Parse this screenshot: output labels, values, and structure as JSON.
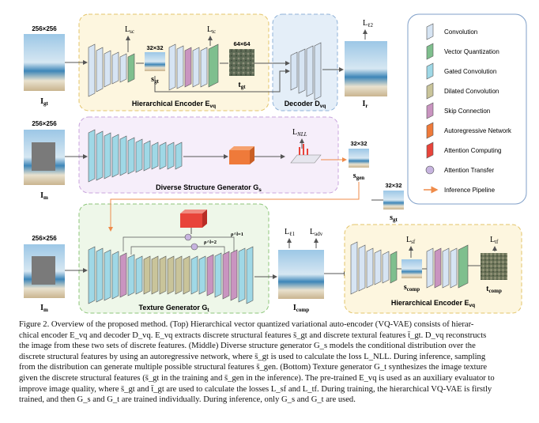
{
  "sizes": {
    "s256": "256×256",
    "s32": "32×32",
    "s64": "64×64"
  },
  "top": {
    "encoder_title": "Hierarchical Encoder E",
    "encoder_sub": "vq",
    "decoder_title": "Decoder D",
    "decoder_sub": "vq",
    "img_in": "I",
    "img_in_sub": "gt",
    "img_out": "I",
    "img_out_sub": "r",
    "s_label": "s",
    "s_sub": "gt",
    "t_label": "t",
    "t_sub": "gt",
    "loss_sc": "L",
    "loss_sc_sub": "sc",
    "loss_tc": "L",
    "loss_tc_sub": "tc",
    "loss_l2": "L",
    "loss_l2_sub": "ℓ2"
  },
  "middle": {
    "title": "Diverse Structure Generator G",
    "title_sub": "s",
    "img_in": "I",
    "img_in_sub": "m",
    "loss_nll": "L",
    "loss_nll_sub": "NLL",
    "s_label": "s",
    "s_sub": "gen"
  },
  "bottom": {
    "title": "Texture Generator G",
    "title_sub": "t",
    "img_in": "I",
    "img_in_sub": "m",
    "s_label": "s",
    "s_sub": "gt",
    "img_comp": "I",
    "img_comp_sub": "comp",
    "loss_l1": "L",
    "loss_l1_sub": "ℓ1",
    "loss_adv": "L",
    "loss_adv_sub": "adv",
    "loss_sf": "L",
    "loss_sf_sub": "sf",
    "loss_tf": "L",
    "loss_tf_sub": "tf",
    "s_comp": "s",
    "s_comp_sub": "comp",
    "t_comp": "t",
    "t_comp_sub": "comp",
    "enc_title": "Hierarchical Encoder E",
    "enc_sub": "vq",
    "rho1": "ρ^l=1",
    "rho2": "ρ^l=2"
  },
  "legend": {
    "items": [
      {
        "label": "Convolution",
        "color": "#d6e4f3"
      },
      {
        "label": "Vector Quantization",
        "color": "#7fbf8e"
      },
      {
        "label": "Gated Convolution",
        "color": "#9fd8e6"
      },
      {
        "label": "Dilated Convolution",
        "color": "#c9c49a"
      },
      {
        "label": "Skip Connection",
        "color": "#c994c0"
      },
      {
        "label": "Autoregressive Network",
        "color": "#ef7a3a"
      },
      {
        "label": "Attention Computing",
        "color": "#e8443a"
      },
      {
        "label": "Attention Transfer",
        "color": "#c7b4df"
      },
      {
        "label": "Inference Pipeline",
        "color": "#ef8b4a"
      }
    ]
  },
  "caption": {
    "lines": [
      "Figure 2. Overview of the proposed method. (Top) Hierarchical vector quantized variational auto-encoder (VQ-VAE) consists of hierar-",
      "chical encoder E_vq and decoder D_vq. E_vq extracts discrete structural features s̄_gt and discrete textural features t̄_gt. D_vq reconstructs",
      "the image from these two sets of discrete features. (Middle) Diverse structure generator G_s models the conditional distribution over the",
      "discrete structural features by using an autoregressive network, where s̄_gt is used to calculate the loss L_NLL. During inference, sampling",
      "from the distribution can generate multiple possible structural features s̄_gen. (Bottom) Texture generator G_t synthesizes the image texture",
      "given the discrete structural features (s̄_gt in the training and s̄_gen in the inference). The pre-trained E_vq is used as an auxiliary evaluator to",
      "improve image quality, where s̄_gt and t̄_gt are used to calculate the losses L_sf and L_tf. During training, the hierarchical VQ-VAE is firstly",
      "trained, and then G_s and G_t are trained individually. During inference, only G_s and G_t are used."
    ]
  }
}
